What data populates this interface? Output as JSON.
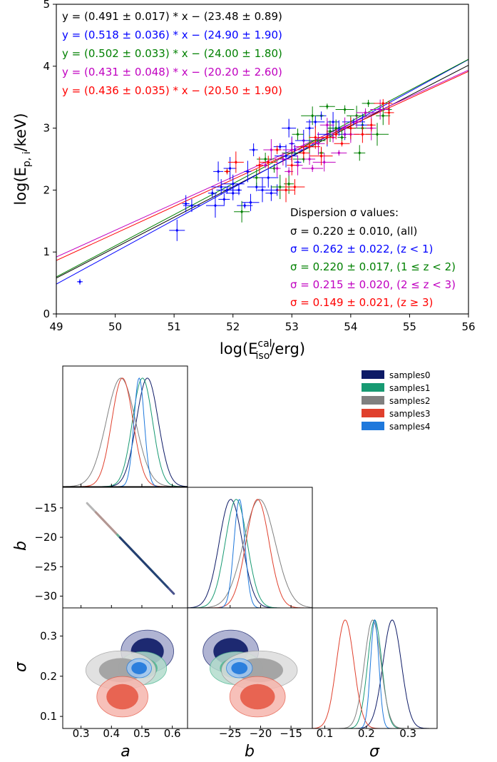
{
  "chart_data": [
    {
      "type": "scatter",
      "xlabel": "log(E_iso^cal/erg)",
      "ylabel": "log(E_p,i/keV)",
      "xlim": [
        49,
        56
      ],
      "ylim": [
        0,
        5
      ],
      "xticks": [
        "49",
        "50",
        "51",
        "52",
        "53",
        "54",
        "55",
        "56"
      ],
      "yticks": [
        "0",
        "1",
        "2",
        "3",
        "4",
        "5"
      ],
      "fits": [
        {
          "equation": "y = (0.491 ± 0.017) * x − (23.48 ± 0.89)",
          "slope": 0.491,
          "intercept": -23.48,
          "color": "#000000"
        },
        {
          "equation": "y = (0.518 ± 0.036) * x − (24.90 ± 1.90)",
          "slope": 0.518,
          "intercept": -24.9,
          "color": "#0000ff"
        },
        {
          "equation": "y = (0.502 ± 0.033) * x − (24.00 ± 1.80)",
          "slope": 0.502,
          "intercept": -24.0,
          "color": "#008000"
        },
        {
          "equation": "y = (0.431 ± 0.048) * x − (20.20 ± 2.60)",
          "slope": 0.431,
          "intercept": -20.2,
          "color": "#c000c0"
        },
        {
          "equation": "y = (0.436 ± 0.035) * x − (20.50 ± 1.90)",
          "slope": 0.436,
          "intercept": -20.5,
          "color": "#ff0000"
        }
      ],
      "dispersion_title": "Dispersion σ values:",
      "dispersion": [
        {
          "text": "σ = 0.220 ± 0.010, (all)",
          "color": "#000000"
        },
        {
          "text": "σ = 0.262 ± 0.022, (z < 1)",
          "color": "#0000ff"
        },
        {
          "text": "σ = 0.220 ± 0.017, (1 ≤ z < 2)",
          "color": "#008000"
        },
        {
          "text": "σ = 0.215 ± 0.020, (2 ≤ z < 3)",
          "color": "#c000c0"
        },
        {
          "text": "σ = 0.149 ± 0.021, (z ≥ 3)",
          "color": "#ff0000"
        }
      ],
      "series": [
        {
          "color": "#0000ff",
          "points": [
            [
              49.4,
              0.52
            ],
            [
              51.05,
              1.35
            ],
            [
              51.2,
              1.78
            ],
            [
              51.3,
              1.75
            ],
            [
              51.65,
              1.95
            ],
            [
              51.7,
              1.75
            ],
            [
              51.75,
              2.3
            ],
            [
              51.8,
              2.05
            ],
            [
              51.85,
              1.85
            ],
            [
              51.9,
              2.0
            ],
            [
              51.95,
              2.35
            ],
            [
              52.0,
              2.1
            ],
            [
              52.0,
              1.95
            ],
            [
              52.1,
              2.0
            ],
            [
              52.2,
              1.75
            ],
            [
              52.25,
              2.3
            ],
            [
              52.3,
              1.8
            ],
            [
              52.35,
              2.65
            ],
            [
              52.4,
              2.05
            ],
            [
              52.5,
              2.0
            ],
            [
              52.6,
              2.2
            ],
            [
              52.65,
              1.95
            ],
            [
              52.75,
              2.0
            ],
            [
              52.8,
              2.7
            ],
            [
              52.9,
              2.55
            ],
            [
              52.95,
              3.0
            ],
            [
              53.0,
              2.75
            ],
            [
              53.05,
              2.65
            ],
            [
              53.1,
              2.45
            ],
            [
              53.2,
              2.8
            ],
            [
              53.3,
              3.0
            ],
            [
              53.4,
              3.1
            ],
            [
              53.5,
              3.2
            ],
            [
              53.6,
              2.9
            ],
            [
              53.7,
              3.1
            ],
            [
              53.8,
              3.0
            ],
            [
              53.9,
              2.9
            ],
            [
              54.05,
              3.1
            ],
            [
              54.2,
              3.05
            ]
          ]
        },
        {
          "color": "#008000",
          "points": [
            [
              51.9,
              2.3
            ],
            [
              52.15,
              1.65
            ],
            [
              52.4,
              2.2
            ],
            [
              52.55,
              2.5
            ],
            [
              52.7,
              2.35
            ],
            [
              52.8,
              2.05
            ],
            [
              52.95,
              2.1
            ],
            [
              53.0,
              2.6
            ],
            [
              53.1,
              2.9
            ],
            [
              53.2,
              2.5
            ],
            [
              53.3,
              2.7
            ],
            [
              53.35,
              3.2
            ],
            [
              53.45,
              2.8
            ],
            [
              53.5,
              2.6
            ],
            [
              53.6,
              3.35
            ],
            [
              53.65,
              2.95
            ],
            [
              53.75,
              3.0
            ],
            [
              53.85,
              2.85
            ],
            [
              53.9,
              3.3
            ],
            [
              54.0,
              3.0
            ],
            [
              54.1,
              3.2
            ],
            [
              54.15,
              2.6
            ],
            [
              54.2,
              3.0
            ],
            [
              54.3,
              3.4
            ],
            [
              54.45,
              2.9
            ],
            [
              54.55,
              3.2
            ],
            [
              54.65,
              3.3
            ]
          ]
        },
        {
          "color": "#c000c0",
          "points": [
            [
              52.55,
              2.4
            ],
            [
              52.65,
              2.65
            ],
            [
              52.75,
              2.35
            ],
            [
              52.85,
              2.5
            ],
            [
              52.95,
              2.3
            ],
            [
              53.0,
              2.65
            ],
            [
              53.1,
              2.4
            ],
            [
              53.2,
              2.7
            ],
            [
              53.3,
              2.5
            ],
            [
              53.35,
              2.35
            ],
            [
              53.45,
              2.75
            ],
            [
              53.55,
              2.45
            ],
            [
              53.6,
              3.05
            ],
            [
              53.7,
              2.85
            ],
            [
              53.8,
              2.6
            ],
            [
              53.9,
              3.0
            ],
            [
              54.0,
              2.9
            ],
            [
              54.1,
              3.1
            ],
            [
              54.25,
              3.25
            ],
            [
              54.35,
              3.0
            ],
            [
              54.5,
              3.3
            ]
          ]
        },
        {
          "color": "#ff0000",
          "points": [
            [
              51.9,
              2.3
            ],
            [
              52.05,
              2.45
            ],
            [
              52.45,
              2.4
            ],
            [
              52.6,
              2.45
            ],
            [
              52.75,
              2.65
            ],
            [
              52.9,
              2.0
            ],
            [
              53.0,
              2.4
            ],
            [
              53.05,
              2.05
            ],
            [
              53.2,
              2.6
            ],
            [
              53.3,
              2.7
            ],
            [
              53.4,
              2.85
            ],
            [
              53.5,
              2.55
            ],
            [
              53.6,
              2.85
            ],
            [
              53.75,
              2.9
            ],
            [
              53.85,
              2.75
            ],
            [
              54.0,
              3.0
            ],
            [
              54.2,
              2.9
            ],
            [
              54.35,
              3.05
            ],
            [
              54.55,
              3.4
            ],
            [
              54.65,
              3.25
            ]
          ]
        }
      ]
    },
    {
      "type": "corner",
      "legend": [
        "samples0",
        "samples1",
        "samples2",
        "samples3",
        "samples4"
      ],
      "parameters": [
        "a",
        "b",
        "σ"
      ],
      "a_ticks": [
        "0.3",
        "0.4",
        "0.5",
        "0.6"
      ],
      "b_ticks": [
        "−25",
        "−20",
        "−15"
      ],
      "b_yticks": [
        "−15",
        "−20",
        "−25",
        "−30"
      ],
      "sigma_ticks": [
        "0.1",
        "0.2",
        "0.3"
      ],
      "a_range": [
        0.24,
        0.65
      ],
      "b_range": [
        -32,
        -11.5
      ],
      "sigma_range": [
        0.07,
        0.37
      ],
      "samples": [
        {
          "name": "samples0",
          "color": "#0d1a66",
          "a": [
            0.518,
            0.036
          ],
          "b": [
            -24.9,
            1.9
          ],
          "sigma": [
            0.262,
            0.022
          ],
          "contour_fill": [
            "#a3a7cc",
            "#0d1a66"
          ]
        },
        {
          "name": "samples1",
          "color": "#179a72",
          "a": [
            0.502,
            0.033
          ],
          "b": [
            -24.0,
            1.8
          ],
          "sigma": [
            0.22,
            0.017
          ],
          "contour_fill": [
            "#b3dccd",
            "#4fb892"
          ]
        },
        {
          "name": "samples2",
          "color": "#808080",
          "a": [
            0.431,
            0.048
          ],
          "b": [
            -20.2,
            2.6
          ],
          "sigma": [
            0.215,
            0.02
          ],
          "contour_fill": [
            "#dcdcdc",
            "#9e9e9e"
          ]
        },
        {
          "name": "samples3",
          "color": "#e0402d",
          "a": [
            0.436,
            0.035
          ],
          "b": [
            -20.5,
            1.9
          ],
          "sigma": [
            0.149,
            0.021
          ],
          "contour_fill": [
            "#f6b6ad",
            "#e65a47"
          ]
        },
        {
          "name": "samples4",
          "color": "#1e78dc",
          "a": [
            0.491,
            0.017
          ],
          "b": [
            -23.48,
            0.89
          ],
          "sigma": [
            0.22,
            0.01
          ],
          "contour_fill": [
            "#9fc7f2",
            "#1e78dc"
          ]
        }
      ]
    }
  ]
}
